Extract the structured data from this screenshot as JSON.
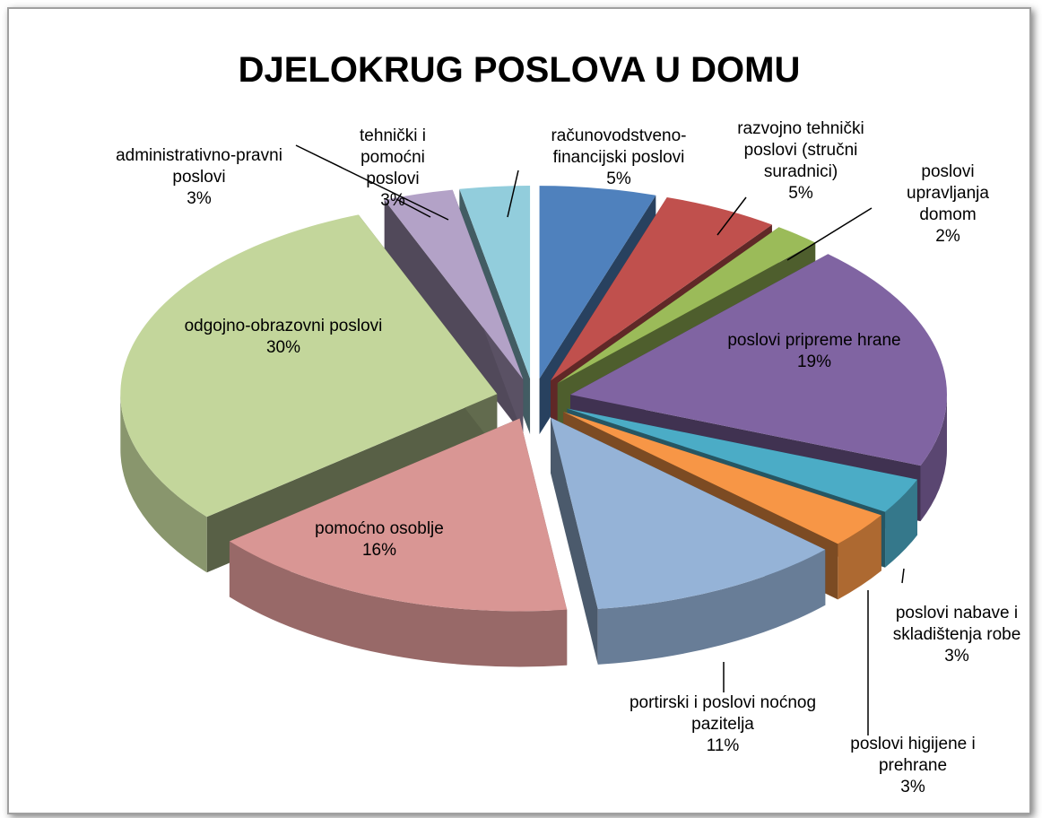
{
  "chart_data": {
    "type": "pie",
    "title": "DJELOKRUG POSLOVA U DOMU",
    "categories": [
      "računovodstveno-financijski poslovi",
      "razvojno tehnički poslovi (stručni suradnici)",
      "poslovi upravljanja domom",
      "poslovi pripreme hrane",
      "poslovi nabave i skladištenja robe",
      "poslovi higijene i prehrane",
      "portirski i poslovi noćnog pazitelja",
      "pomoćno osoblje",
      "odgojno-obrazovni poslovi",
      "administrativno-pravni poslovi",
      "tehnički i pomoćni poslovi"
    ],
    "values": [
      5,
      5,
      2,
      19,
      3,
      3,
      11,
      16,
      30,
      3,
      3
    ],
    "value_labels": [
      "5%",
      "5%",
      "2%",
      "19%",
      "3%",
      "3%",
      "11%",
      "16%",
      "30%",
      "3%",
      "3%"
    ],
    "colors": [
      "#4f81bd",
      "#c0504d",
      "#9bbb59",
      "#8064a2",
      "#4bacc6",
      "#f79646",
      "#95b3d7",
      "#d99694",
      "#c3d69b",
      "#b3a2c7",
      "#92cddc"
    ]
  }
}
